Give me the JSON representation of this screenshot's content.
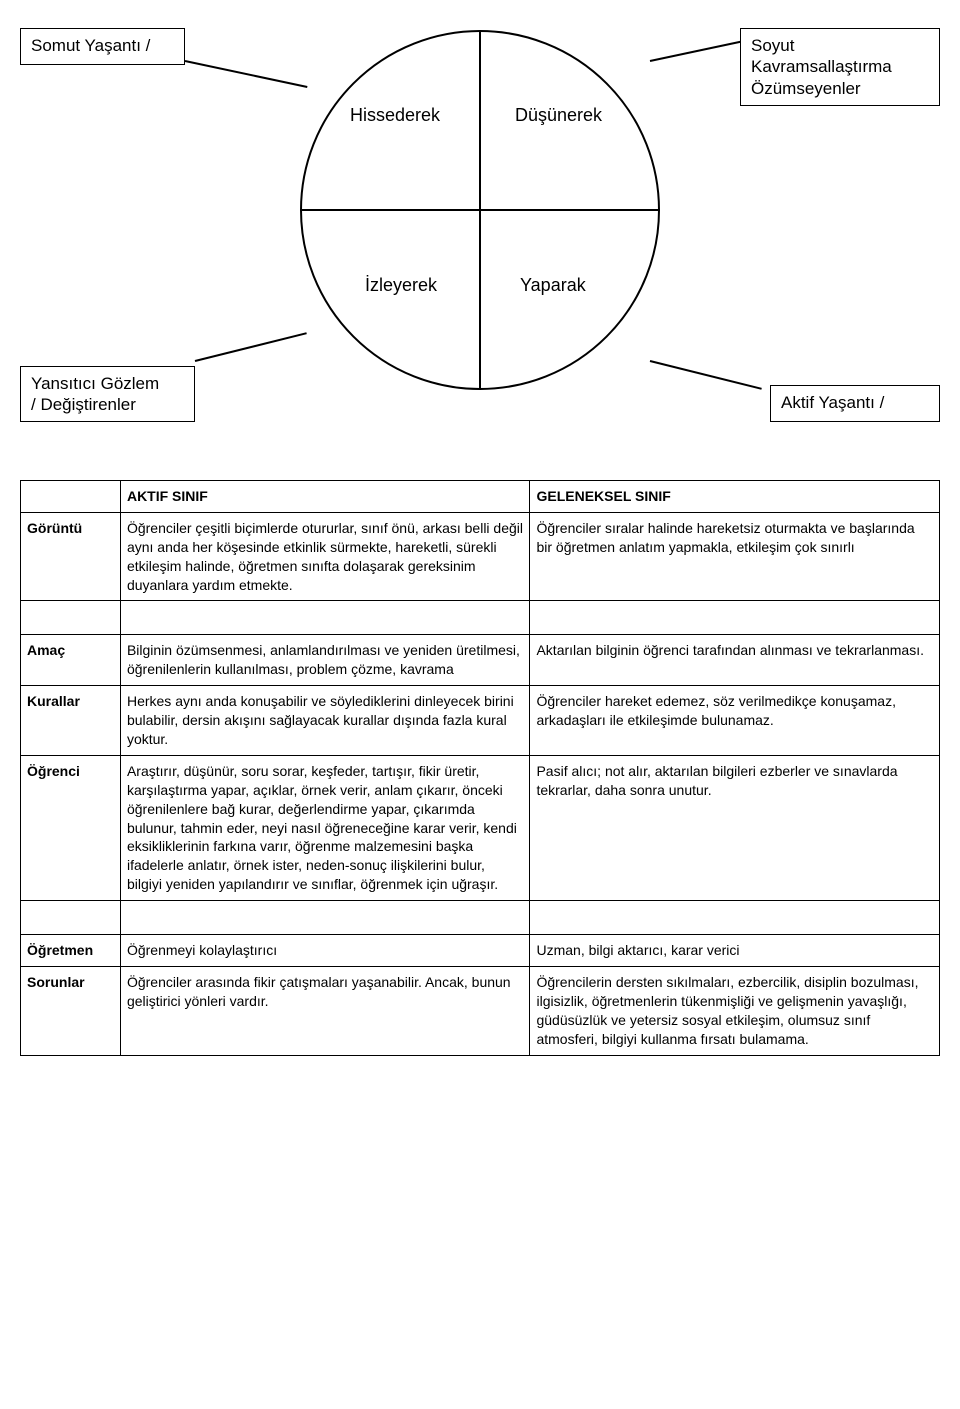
{
  "diagram": {
    "boxes": {
      "topLeft": {
        "line1": "Somut Yaşantı /",
        "sub": ""
      },
      "topRight": {
        "line1": "Soyut",
        "line2": "Kavramsallaştırma",
        "line3": "Özümseyenler"
      },
      "bottomLeft": {
        "line1": "Yansıtıcı Gözlem",
        "line2": "/ Değiştirenler"
      },
      "bottomRight": {
        "line1": "Aktif Yaşantı /",
        "sub": ""
      }
    },
    "quadrants": {
      "tl": "Hissederek",
      "tr": "Düşünerek",
      "bl": "İzleyerek",
      "br": "Yaparak"
    },
    "circle": {
      "stroke": "#000000",
      "strokeWidth": 2,
      "diameter": 360
    }
  },
  "table": {
    "headers": {
      "col1": "AKTIF SINIF",
      "col2": "GELENEKSEL SINIF"
    },
    "rows": [
      {
        "label": "Görüntü",
        "aktif": "Öğrenciler çeşitli biçimlerde otururlar, sınıf önü, arkası belli değil aynı anda her köşesinde etkinlik sürmekte, hareketli, sürekli etkileşim halinde, öğretmen sınıfta dolaşarak gereksinim duyanlara yardım etmekte.",
        "geleneksel": "Öğrenciler sıralar halinde hareketsiz oturmakta ve başlarında bir öğretmen anlatım yapmakla, etkileşim çok sınırlı"
      },
      {
        "label": "Amaç",
        "aktif": "Bilginin özümsenmesi, anlamlandırılması ve yeniden üretilmesi, öğrenilenlerin kullanılması, problem çözme, kavrama",
        "geleneksel": "Aktarılan bilginin öğrenci tarafından alınması ve tekrarlanması."
      },
      {
        "label": "Kurallar",
        "aktif": "Herkes aynı anda konuşabilir ve söylediklerini dinleyecek birini bulabilir, dersin akışını sağlayacak\nkurallar dışında fazla kural yoktur.",
        "geleneksel": "Öğrenciler hareket edemez, söz verilmedikçe konuşamaz, arkadaşları ile etkileşimde bulunamaz."
      },
      {
        "label": "Öğrenci",
        "aktif": "Araştırır, düşünür, soru sorar, keşfeder, tartışır, fikir üretir, karşılaştırma yapar, açıklar, örnek verir, anlam çıkarır, önceki öğrenilenlere bağ kurar, değerlendirme yapar, çıkarımda bulunur, tahmin eder, neyi nasıl öğreneceğine karar verir, kendi eksikliklerinin farkına varır, öğrenme malzemesini başka ifadelerle anlatır, örnek ister, neden-sonuç ilişkilerini bulur, bilgiyi yeniden yapılandırır ve sınıflar, öğrenmek için uğraşır.",
        "geleneksel": "Pasif alıcı; not alır, aktarılan bilgileri ezberler ve sınavlarda tekrarlar, daha sonra unutur."
      },
      {
        "label": "Öğretmen",
        "aktif": "Öğrenmeyi kolaylaştırıcı",
        "geleneksel": "Uzman, bilgi aktarıcı, karar verici"
      },
      {
        "label": "Sorunlar",
        "aktif": "Öğrenciler arasında fikir çatışmaları yaşanabilir. Ancak, bunun geliştirici yönleri vardır.",
        "geleneksel": "Öğrencilerin dersten sıkılmaları, ezbercilik, disiplin bozulması, ilgisizlik, öğretmenlerin tükenmişliği ve gelişmenin yavaşlığı, güdüsüzlük ve yetersiz sosyal etkileşim, olumsuz sınıf atmosferi, bilgiyi kullanma fırsatı bulamama."
      }
    ]
  },
  "colors": {
    "text": "#000000",
    "background": "#ffffff",
    "border": "#000000"
  }
}
